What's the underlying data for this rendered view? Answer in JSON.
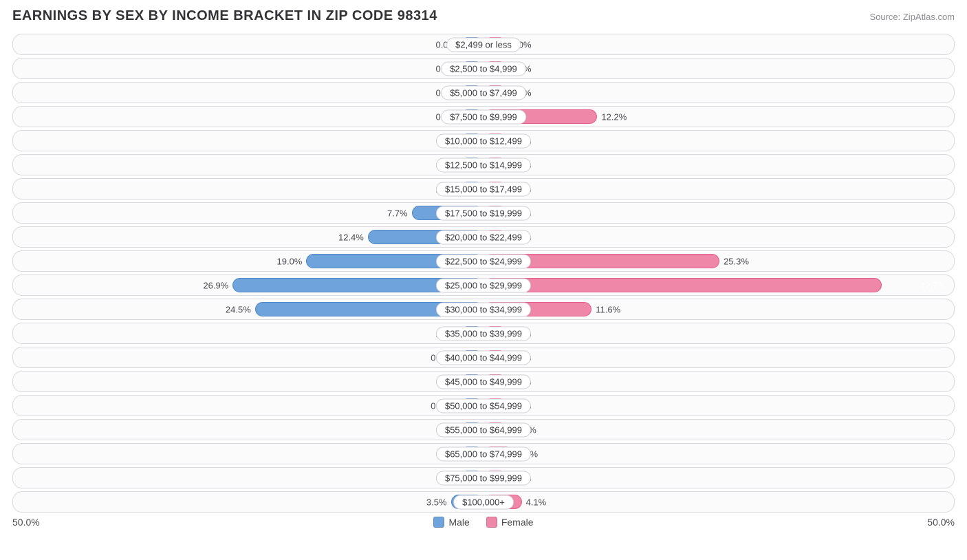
{
  "title": "EARNINGS BY SEX BY INCOME BRACKET IN ZIP CODE 98314",
  "source": "Source: ZipAtlas.com",
  "chart": {
    "type": "diverging-bar",
    "axis_max": 50.0,
    "axis_left_label": "50.0%",
    "axis_right_label": "50.0%",
    "min_bar_pct": 5.0,
    "label_box_half_pct": 10.0,
    "colors": {
      "male_fill": "#6fa3db",
      "male_border": "#4e86c6",
      "female_fill": "#ef87a8",
      "female_border": "#e35d8a",
      "row_bg": "#fbfbfc",
      "row_border": "#d9d9dd",
      "text": "#3a3a3f",
      "muted_text": "#8a8a92"
    },
    "legend": {
      "male": "Male",
      "female": "Female"
    },
    "rows": [
      {
        "label": "$2,499 or less",
        "male": 0.0,
        "male_txt": "0.0%",
        "female": 0.0,
        "female_txt": "0.0%"
      },
      {
        "label": "$2,500 to $4,999",
        "male": 0.0,
        "male_txt": "0.0%",
        "female": 0.0,
        "female_txt": "0.0%"
      },
      {
        "label": "$5,000 to $7,499",
        "male": 0.0,
        "male_txt": "0.0%",
        "female": 0.0,
        "female_txt": "0.0%"
      },
      {
        "label": "$7,500 to $9,999",
        "male": 0.0,
        "male_txt": "0.0%",
        "female": 12.2,
        "female_txt": "12.2%"
      },
      {
        "label": "$10,000 to $12,499",
        "male": 0.0,
        "male_txt": "0.0%",
        "female": 0.0,
        "female_txt": "0.0%"
      },
      {
        "label": "$12,500 to $14,999",
        "male": 0.0,
        "male_txt": "0.0%",
        "female": 0.0,
        "female_txt": "0.0%"
      },
      {
        "label": "$15,000 to $17,499",
        "male": 2.3,
        "male_txt": "2.3%",
        "female": 0.0,
        "female_txt": "0.0%"
      },
      {
        "label": "$17,500 to $19,999",
        "male": 7.7,
        "male_txt": "7.7%",
        "female": 0.0,
        "female_txt": "0.0%"
      },
      {
        "label": "$20,000 to $22,499",
        "male": 12.4,
        "male_txt": "12.4%",
        "female": 0.0,
        "female_txt": "0.0%"
      },
      {
        "label": "$22,500 to $24,999",
        "male": 19.0,
        "male_txt": "19.0%",
        "female": 25.3,
        "female_txt": "25.3%"
      },
      {
        "label": "$25,000 to $29,999",
        "male": 26.9,
        "male_txt": "26.9%",
        "female": 42.7,
        "female_txt": "42.7%",
        "female_inside": true
      },
      {
        "label": "$30,000 to $34,999",
        "male": 24.5,
        "male_txt": "24.5%",
        "female": 11.6,
        "female_txt": "11.6%"
      },
      {
        "label": "$35,000 to $39,999",
        "male": 2.3,
        "male_txt": "2.3%",
        "female": 0.0,
        "female_txt": "0.0%"
      },
      {
        "label": "$40,000 to $44,999",
        "male": 0.43,
        "male_txt": "0.43%",
        "female": 0.0,
        "female_txt": "0.0%"
      },
      {
        "label": "$45,000 to $49,999",
        "male": 0.0,
        "male_txt": "0.0%",
        "female": 0.0,
        "female_txt": "0.0%"
      },
      {
        "label": "$50,000 to $54,999",
        "male": 0.95,
        "male_txt": "0.95%",
        "female": 0.0,
        "female_txt": "0.0%"
      },
      {
        "label": "$55,000 to $64,999",
        "male": 0.0,
        "male_txt": "0.0%",
        "female": 0.87,
        "female_txt": "0.87%"
      },
      {
        "label": "$65,000 to $74,999",
        "male": 0.0,
        "male_txt": "0.0%",
        "female": 3.2,
        "female_txt": "3.2%"
      },
      {
        "label": "$75,000 to $99,999",
        "male": 0.0,
        "male_txt": "0.0%",
        "female": 0.0,
        "female_txt": "0.0%"
      },
      {
        "label": "$100,000+",
        "male": 3.5,
        "male_txt": "3.5%",
        "female": 4.1,
        "female_txt": "4.1%"
      }
    ]
  }
}
